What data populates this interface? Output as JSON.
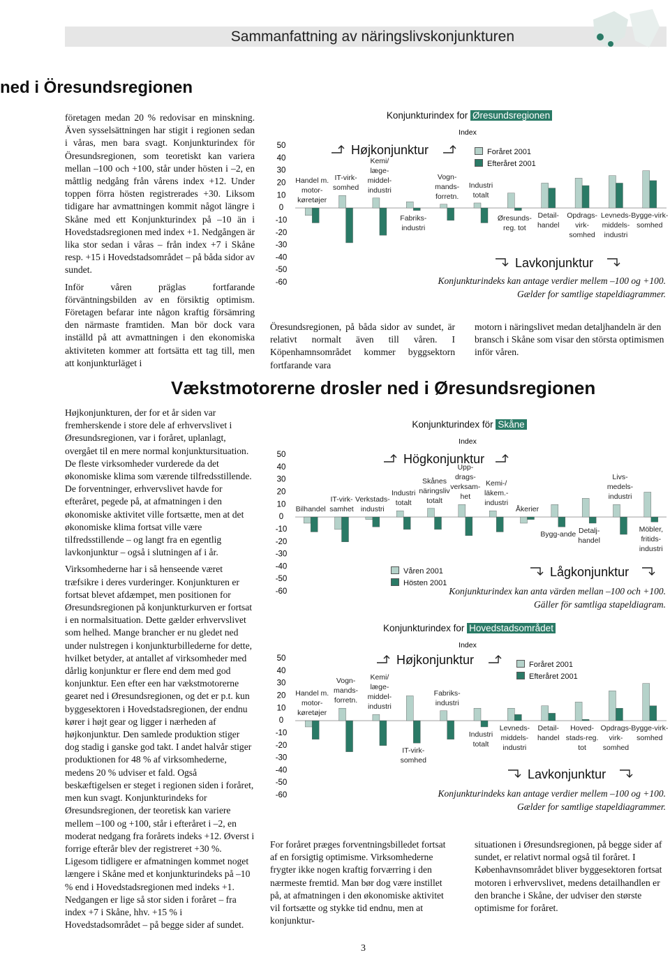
{
  "header": {
    "title": "Sammanfattning av näringslivskonjunkturen"
  },
  "section_title": "ned i Öresundsregionen",
  "headline": "Vækstmotorerne drosler ned i Øresundsregionen",
  "columns": {
    "top_left": [
      "företagen medan 20 % redovisar en minskning. Även sysselsättningen har stigit i regionen sedan i våras, men bara svagt. Konjunkturindex för Öresundsregionen, som teoretiskt kan variera mellan –100 och +100, står under hösten i –2, en måttlig nedgång från vårens index +12. Under toppen förra hösten registrerades +30. Liksom tidigare har avmattningen kommit något längre i Skåne med ett Konjunkturindex på –10 än i Hovedstadsregionen med index +1. Nedgången är lika stor sedan i våras – från index +7 i Skåne resp. +15 i Hovedstadsområdet – på båda sidor av sundet.",
      "Inför våren präglas fortfarande förväntningsbilden av en försiktig optimism. Företagen befarar inte någon kraftig försämring den närmaste framtiden. Man bör dock vara inställd på att avmattningen i den ekonomiska aktiviteten kommer att fortsätta ett tag till, men att konjunkturläget i"
    ],
    "top_middle": [
      "Öresundsregionen, på båda sidor av sundet, är relativt normalt även till våren. I Köpenhamnsområdet kommer byggsektorn fortfarande vara"
    ],
    "top_right": [
      "motorn i näringslivet medan detaljhandeln är den bransch i Skåne som visar den största optimismen inför våren."
    ],
    "bottom_left": [
      "Højkonjunkturen, der for et år siden var fremherskende i store dele af erhvervslivet i Øresundsregionen, var i foråret, uplanlagt, overgået til en mere normal konjunktursituation. De fleste virksomheder vurderede da det økonomiske klima som værende tilfredsstillende. De forventninger, erhvervslivet havde for efteråret, pegede på, at afmatningen i den økonomiske aktivitet ville fortsætte, men at det økonomiske klima fortsat ville være tilfredsstillende – og langt fra en egentlig lavkonjunktur – også i slutningen af i år.",
      "Virksomhederne har i så henseende været træfsikre i deres vurderinger. Konjunkturen er fortsat blevet afdæmpet, men positionen for Øresundsregionen på konjunkturkurven er fortsat i en normalsituation. Dette gælder erhvervslivet som helhed. Mange brancher er nu gledet ned under nulstregen i konjunkturbillederne for dette, hvilket betyder, at antallet af virksomheder med dårlig konjunktur er flere end dem med god konjunktur. Een efter een har vækstmotorerne gearet ned i Øresundsregionen, og det er p.t. kun byggesektoren i Hovedstadsregionen, der endnu kører i højt gear og ligger i nærheden af højkonjunktur. Den samlede produktion stiger dog stadig i ganske god takt. I andet halvår stiger produktionen for 48 % af virksomhederne, medens 20 % udviser et fald. Også beskæftigelsen er steget i regionen siden i foråret, men kun svagt. Konjunkturindeks for Øresundsregionen, der teoretisk kan variere mellem –100 og +100, står i efteråret i –2, en moderat nedgang fra forårets indeks +12. Øverst i forrige efterår blev der registreret +30 %. Ligesom tidligere er afmatningen kommet noget længere i Skåne med et konjunkturindeks på –10 % end i Hovedstadsregionen med indeks +1. Nedgangen er lige så stor siden i foråret – fra index +7 i Skåne, hhv. +15 % i Hovedstadsområdet – på begge sider af sundet."
    ],
    "bottom_middle": [
      "For foråret præges forventningsbilledet fortsat af en forsigtig optimisme. Virksomhederne frygter ikke nogen kraftig forværring i den nærmeste fremtid. Man bør dog være instillet på, at afmatningen i den økonomiske aktivitet vil fortsætte og stykke tid endnu, men at konjunktur-"
    ],
    "bottom_right": [
      "situationen i Øresundsregionen, på begge sider af sundet, er relativt normal også til foråret. I Københavnsområdet bliver byggesektoren fortsat motoren i erhvervslivet, medens detailhandlen er den branche i Skåne, der udviser den største optimisme for foråret."
    ]
  },
  "page_number": "3",
  "chart_data": [
    {
      "type": "bar",
      "title": "Konjunkturindex for",
      "title_highlight": "Øresundsregionen",
      "y_label": "Index",
      "annotation_high": "Højkonjunktur",
      "annotation_low": "Lavkonjunktur",
      "notes": [
        "Konjunkturindeks kan antage verdier mellem –100 og +100.",
        "Gælder for samtlige stapeldiagrammer."
      ],
      "categories": [
        "Handel m. motor-køretøjer",
        "IT-virk-somhed",
        "Kemi/ læge-middel-industri",
        "Fabriks-industri",
        "Vogn-mands-forretn.",
        "Industri totalt",
        "Øresunds-reg. tot",
        "Detail-handel",
        "Opdrags-virk-somhed",
        "Levneds-middels-industri",
        "Bygge-virk-somhed"
      ],
      "series": [
        {
          "name": "Foråret 2001",
          "color": "#b5d2ca",
          "values": [
            -6,
            10,
            8,
            5,
            3,
            4,
            12,
            20,
            24,
            26,
            30
          ]
        },
        {
          "name": "Efteråret 2001",
          "color": "#2a7a66",
          "values": [
            -12,
            -28,
            -22,
            -2,
            -10,
            -12,
            -2,
            16,
            18,
            20,
            22
          ]
        }
      ],
      "ylim": [
        -60,
        50
      ],
      "yticks": [
        50,
        40,
        30,
        20,
        10,
        0,
        -10,
        -20,
        -30,
        -40,
        -50,
        -60
      ]
    },
    {
      "type": "bar",
      "title": "Konjunkturindex för",
      "title_highlight": "Skåne",
      "y_label": "Index",
      "annotation_high": "Högkonjunktur",
      "annotation_low": "Lågkonjunktur",
      "notes": [
        "Konjunkturindex kan anta värden mellan –100 och +100.",
        "Gäller för samtliga stapeldiagram."
      ],
      "categories": [
        "Bilhandel",
        "IT-virk-samhet",
        "Verkstads-industri",
        "Industri totalt",
        "Skånes näringsliv totalt",
        "Upp-drags-verksam-het",
        "Kemi-/ läkem.-industri",
        "Åkerier",
        "Bygg-ande",
        "Detalj-handel",
        "Livs-medels-industri",
        "Möbler, fritids-industri"
      ],
      "series": [
        {
          "name": "Våren 2001",
          "color": "#b5d2ca",
          "values": [
            -5,
            -10,
            -2,
            5,
            7,
            10,
            5,
            -5,
            10,
            15,
            10,
            20
          ]
        },
        {
          "name": "Hösten 2001",
          "color": "#2a7a66",
          "values": [
            -12,
            -20,
            -8,
            -10,
            -10,
            -15,
            -12,
            -2,
            -8,
            -5,
            -14,
            -4
          ]
        }
      ],
      "ylim": [
        -60,
        50
      ],
      "yticks": [
        50,
        40,
        30,
        20,
        10,
        0,
        -10,
        -20,
        -30,
        -40,
        -50,
        -60
      ]
    },
    {
      "type": "bar",
      "title": "Konjunkturindex for",
      "title_highlight": "Hovedstadsområdet",
      "y_label": "Index",
      "annotation_high": "Højkonjunktur",
      "annotation_low": "Lavkonjunktur",
      "notes": [
        "Konjunkturindeks kan antage verdier mellem –100 og +100.",
        "Gælder for samtlige stapeldiagrammer."
      ],
      "categories": [
        "Handel m. motor-køretøjer",
        "Vogn-mands-forretn.",
        "Kemi/ læge-middel-industri",
        "IT-virk-somhed",
        "Fabriks-industri",
        "Industri totalt",
        "Levneds-middels-industri",
        "Detail-handel",
        "Hoved-stads-reg. tot",
        "Opdrags-virk-somhed",
        "Bygge-virk-somhed"
      ],
      "series": [
        {
          "name": "Foråret 2001",
          "color": "#b5d2ca",
          "values": [
            -5,
            10,
            5,
            20,
            8,
            10,
            10,
            12,
            15,
            24,
            30
          ]
        },
        {
          "name": "Efteråret 2001",
          "color": "#2a7a66",
          "values": [
            -15,
            -25,
            -20,
            -18,
            -15,
            -5,
            5,
            6,
            1,
            10,
            12
          ]
        }
      ],
      "ylim": [
        -60,
        50
      ],
      "yticks": [
        50,
        40,
        30,
        20,
        10,
        0,
        -10,
        -20,
        -30,
        -40,
        -50,
        -60
      ]
    }
  ]
}
